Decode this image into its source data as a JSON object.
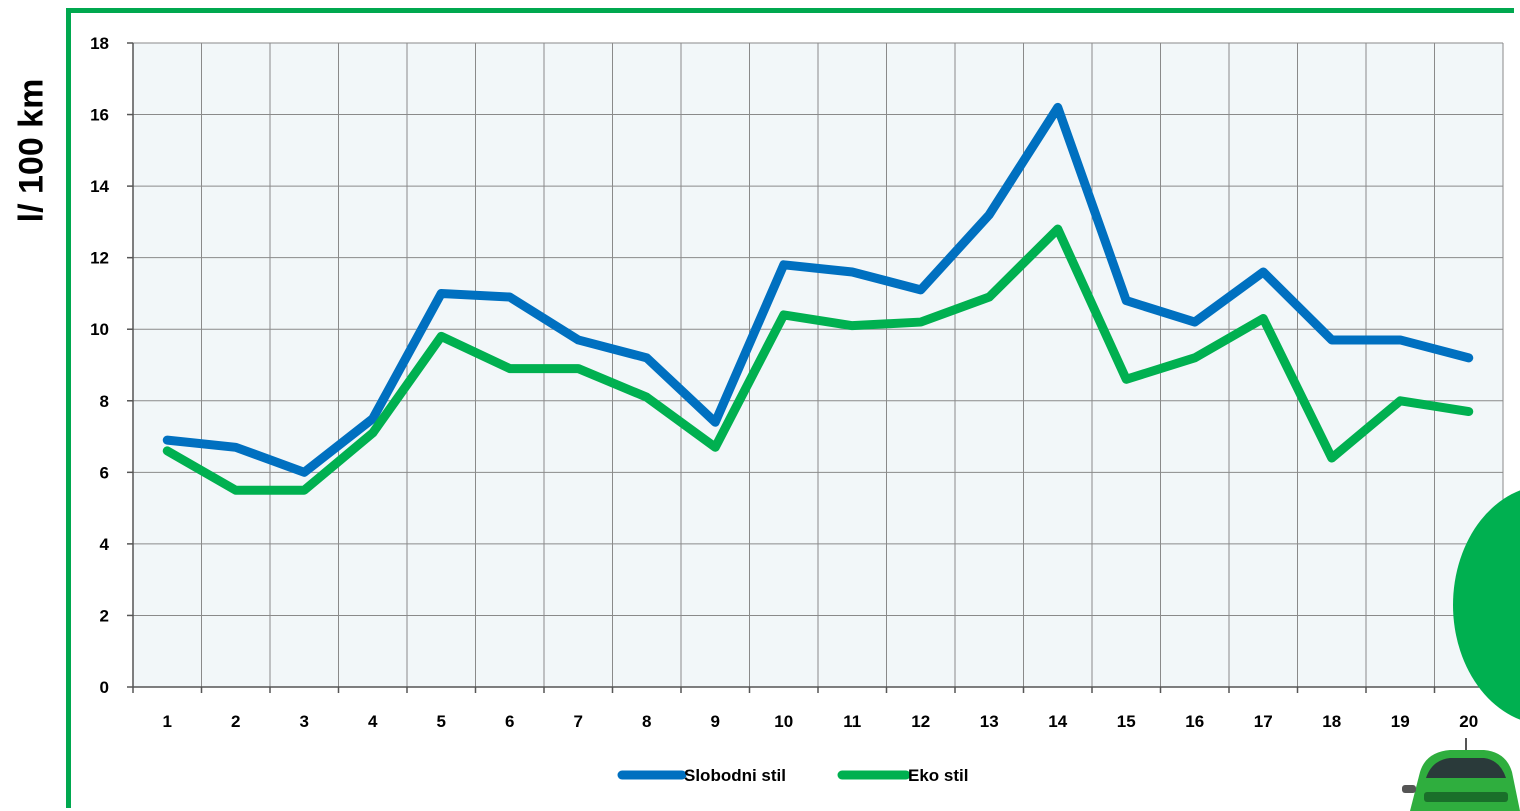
{
  "colors": {
    "frame": "#00a84f",
    "plot_bg": "#f2f7f9",
    "grid": "#8a8a8a",
    "series_1": "#0070c0",
    "series_2": "#00b050",
    "car": "#2fae3e"
  },
  "chart_data": {
    "type": "line",
    "ylabel": "l/ 100 km",
    "xlabel": "",
    "title": "",
    "categories": [
      "1",
      "2",
      "3",
      "4",
      "5",
      "6",
      "7",
      "8",
      "9",
      "10",
      "11",
      "12",
      "13",
      "14",
      "15",
      "16",
      "17",
      "18",
      "19",
      "20"
    ],
    "ylim": [
      0,
      18
    ],
    "yticks": [
      "0",
      "2",
      "4",
      "6",
      "8",
      "10",
      "12",
      "14",
      "16",
      "18"
    ],
    "grid": true,
    "legend": "bottom-center",
    "series": [
      {
        "name": "Slobodni stil",
        "color": "#0070c0",
        "values": [
          6.9,
          6.7,
          6.0,
          7.5,
          11.0,
          10.9,
          9.7,
          9.2,
          7.4,
          11.8,
          11.6,
          11.1,
          13.2,
          16.2,
          10.8,
          10.2,
          11.6,
          9.7,
          9.7,
          9.2
        ]
      },
      {
        "name": "Eko stil",
        "color": "#00b050",
        "values": [
          6.6,
          5.5,
          5.5,
          7.1,
          9.8,
          8.9,
          8.9,
          8.1,
          6.7,
          10.4,
          10.1,
          10.2,
          10.9,
          12.8,
          8.6,
          9.2,
          10.3,
          6.4,
          8.0,
          7.7
        ]
      }
    ]
  }
}
